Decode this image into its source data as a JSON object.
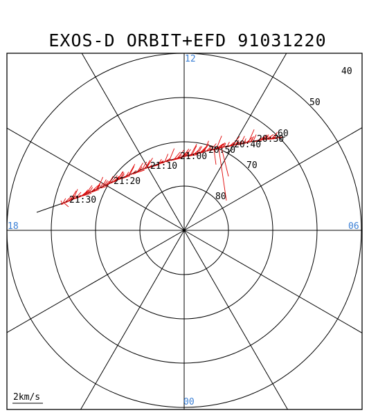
{
  "title": "EXOS-D ORBIT+EFD 91031220",
  "mlt_labels": {
    "top": "12",
    "left": "18",
    "right": "06",
    "bottom": "00"
  },
  "latitude_labels": [
    "40",
    "50",
    "60",
    "70",
    "80"
  ],
  "time_labels": [
    "20:30",
    "20:40",
    "20:50",
    "21:00",
    "21:10",
    "21:20",
    "21:30"
  ],
  "scale_label": "2km/s",
  "colors": {
    "grid": "#000000",
    "orbit": "#000000",
    "efd": "#e00000",
    "mlt_label": "#3a7fd5"
  }
}
